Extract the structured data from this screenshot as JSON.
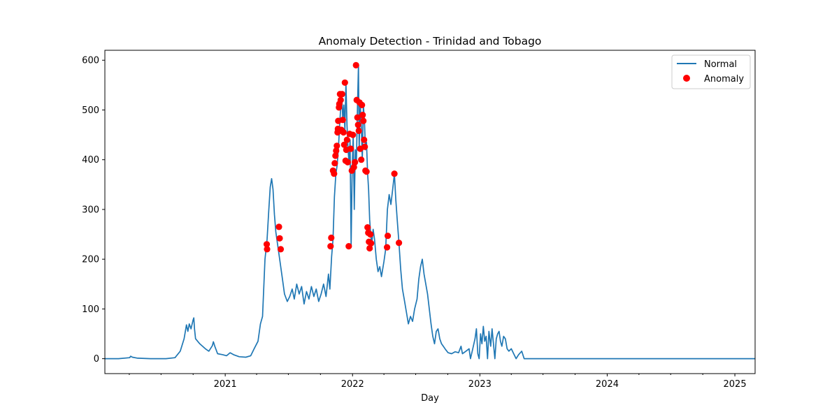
{
  "chart_data": {
    "type": "line",
    "title": "Anomaly Detection - Trinidad and Tobago",
    "xlabel": "Day",
    "ylabel": "",
    "x_axis_type": "date",
    "xlim": [
      "2020-01-22",
      "2025-02-28"
    ],
    "ylim": [
      -30,
      620
    ],
    "xticks": [
      "2021",
      "2022",
      "2023",
      "2024",
      "2025"
    ],
    "yticks": [
      0,
      100,
      200,
      300,
      400,
      500,
      600
    ],
    "legend_position": "top-right",
    "grid": false,
    "colors": {
      "line": "#1f77b4",
      "anomaly": "#ff0000"
    },
    "series": [
      {
        "name": "Normal",
        "kind": "line",
        "points": [
          [
            "2020-01-22",
            0
          ],
          [
            "2020-03-01",
            0
          ],
          [
            "2020-04-02",
            2
          ],
          [
            "2020-04-05",
            5
          ],
          [
            "2020-04-10",
            3
          ],
          [
            "2020-04-25",
            1
          ],
          [
            "2020-06-01",
            0
          ],
          [
            "2020-07-15",
            0
          ],
          [
            "2020-08-10",
            2
          ],
          [
            "2020-08-25",
            15
          ],
          [
            "2020-09-05",
            40
          ],
          [
            "2020-09-12",
            68
          ],
          [
            "2020-09-16",
            55
          ],
          [
            "2020-09-20",
            70
          ],
          [
            "2020-09-25",
            60
          ],
          [
            "2020-10-01",
            78
          ],
          [
            "2020-10-03",
            82
          ],
          [
            "2020-10-05",
            60
          ],
          [
            "2020-10-08",
            40
          ],
          [
            "2020-10-20",
            30
          ],
          [
            "2020-11-05",
            20
          ],
          [
            "2020-11-15",
            15
          ],
          [
            "2020-11-25",
            26
          ],
          [
            "2020-11-28",
            34
          ],
          [
            "2020-12-02",
            25
          ],
          [
            "2020-12-10",
            10
          ],
          [
            "2020-12-25",
            8
          ],
          [
            "2021-01-05",
            6
          ],
          [
            "2021-01-15",
            12
          ],
          [
            "2021-01-25",
            8
          ],
          [
            "2021-02-10",
            4
          ],
          [
            "2021-03-01",
            3
          ],
          [
            "2021-03-15",
            6
          ],
          [
            "2021-03-25",
            20
          ],
          [
            "2021-04-05",
            35
          ],
          [
            "2021-04-12",
            70
          ],
          [
            "2021-04-18",
            85
          ],
          [
            "2021-04-25",
            200
          ],
          [
            "2021-05-01",
            240
          ],
          [
            "2021-05-06",
            300
          ],
          [
            "2021-05-10",
            345
          ],
          [
            "2021-05-14",
            362
          ],
          [
            "2021-05-18",
            340
          ],
          [
            "2021-05-22",
            290
          ],
          [
            "2021-05-26",
            255
          ],
          [
            "2021-06-02",
            220
          ],
          [
            "2021-06-08",
            190
          ],
          [
            "2021-06-14",
            160
          ],
          [
            "2021-06-20",
            130
          ],
          [
            "2021-06-28",
            115
          ],
          [
            "2021-07-05",
            125
          ],
          [
            "2021-07-12",
            140
          ],
          [
            "2021-07-18",
            120
          ],
          [
            "2021-07-25",
            150
          ],
          [
            "2021-08-01",
            130
          ],
          [
            "2021-08-08",
            145
          ],
          [
            "2021-08-15",
            110
          ],
          [
            "2021-08-22",
            135
          ],
          [
            "2021-08-29",
            120
          ],
          [
            "2021-09-05",
            145
          ],
          [
            "2021-09-12",
            125
          ],
          [
            "2021-09-19",
            140
          ],
          [
            "2021-09-26",
            115
          ],
          [
            "2021-10-03",
            130
          ],
          [
            "2021-10-10",
            150
          ],
          [
            "2021-10-17",
            125
          ],
          [
            "2021-10-24",
            170
          ],
          [
            "2021-10-28",
            140
          ],
          [
            "2021-11-02",
            205
          ],
          [
            "2021-11-06",
            240
          ],
          [
            "2021-11-10",
            325
          ],
          [
            "2021-11-14",
            370
          ],
          [
            "2021-11-18",
            390
          ],
          [
            "2021-11-22",
            430
          ],
          [
            "2021-11-25",
            470
          ],
          [
            "2021-11-28",
            505
          ],
          [
            "2021-12-01",
            530
          ],
          [
            "2021-12-04",
            480
          ],
          [
            "2021-12-07",
            510
          ],
          [
            "2021-12-10",
            460
          ],
          [
            "2021-12-13",
            555
          ],
          [
            "2021-12-16",
            470
          ],
          [
            "2021-12-19",
            420
          ],
          [
            "2021-12-22",
            395
          ],
          [
            "2021-12-25",
            440
          ],
          [
            "2021-12-28",
            225
          ],
          [
            "2021-12-31",
            380
          ],
          [
            "2022-01-03",
            450
          ],
          [
            "2022-01-06",
            300
          ],
          [
            "2022-01-09",
            420
          ],
          [
            "2022-01-12",
            390
          ],
          [
            "2022-01-15",
            500
          ],
          [
            "2022-01-18",
            590
          ],
          [
            "2022-01-20",
            420
          ],
          [
            "2022-01-23",
            515
          ],
          [
            "2022-01-26",
            470
          ],
          [
            "2022-01-29",
            400
          ],
          [
            "2022-02-01",
            510
          ],
          [
            "2022-02-04",
            480
          ],
          [
            "2022-02-07",
            420
          ],
          [
            "2022-02-10",
            435
          ],
          [
            "2022-02-13",
            375
          ],
          [
            "2022-02-16",
            340
          ],
          [
            "2022-02-19",
            280
          ],
          [
            "2022-02-22",
            250
          ],
          [
            "2022-02-25",
            230
          ],
          [
            "2022-03-01",
            260
          ],
          [
            "2022-03-05",
            240
          ],
          [
            "2022-03-10",
            200
          ],
          [
            "2022-03-15",
            175
          ],
          [
            "2022-03-20",
            185
          ],
          [
            "2022-03-25",
            165
          ],
          [
            "2022-04-01",
            195
          ],
          [
            "2022-04-06",
            220
          ],
          [
            "2022-04-11",
            300
          ],
          [
            "2022-04-16",
            330
          ],
          [
            "2022-04-21",
            310
          ],
          [
            "2022-04-26",
            340
          ],
          [
            "2022-05-01",
            372
          ],
          [
            "2022-05-05",
            320
          ],
          [
            "2022-05-09",
            280
          ],
          [
            "2022-05-14",
            233
          ],
          [
            "2022-05-19",
            180
          ],
          [
            "2022-05-24",
            140
          ],
          [
            "2022-05-29",
            120
          ],
          [
            "2022-06-04",
            95
          ],
          [
            "2022-06-10",
            70
          ],
          [
            "2022-06-16",
            85
          ],
          [
            "2022-06-22",
            75
          ],
          [
            "2022-06-28",
            100
          ],
          [
            "2022-07-05",
            120
          ],
          [
            "2022-07-10",
            160
          ],
          [
            "2022-07-15",
            185
          ],
          [
            "2022-07-20",
            200
          ],
          [
            "2022-07-25",
            170
          ],
          [
            "2022-07-30",
            150
          ],
          [
            "2022-08-04",
            130
          ],
          [
            "2022-08-09",
            100
          ],
          [
            "2022-08-14",
            70
          ],
          [
            "2022-08-19",
            45
          ],
          [
            "2022-08-24",
            30
          ],
          [
            "2022-08-29",
            55
          ],
          [
            "2022-09-03",
            60
          ],
          [
            "2022-09-08",
            40
          ],
          [
            "2022-09-13",
            30
          ],
          [
            "2022-09-18",
            25
          ],
          [
            "2022-09-25",
            18
          ],
          [
            "2022-10-02",
            12
          ],
          [
            "2022-10-12",
            10
          ],
          [
            "2022-10-22",
            14
          ],
          [
            "2022-11-01",
            12
          ],
          [
            "2022-11-08",
            25
          ],
          [
            "2022-11-12",
            10
          ],
          [
            "2022-11-22",
            15
          ],
          [
            "2022-12-01",
            20
          ],
          [
            "2022-12-05",
            0
          ],
          [
            "2022-12-10",
            15
          ],
          [
            "2022-12-18",
            40
          ],
          [
            "2022-12-22",
            60
          ],
          [
            "2022-12-26",
            10
          ],
          [
            "2022-12-30",
            0
          ],
          [
            "2023-01-03",
            50
          ],
          [
            "2023-01-07",
            30
          ],
          [
            "2023-01-11",
            65
          ],
          [
            "2023-01-15",
            35
          ],
          [
            "2023-01-19",
            45
          ],
          [
            "2023-01-23",
            0
          ],
          [
            "2023-01-27",
            55
          ],
          [
            "2023-02-01",
            25
          ],
          [
            "2023-02-05",
            60
          ],
          [
            "2023-02-09",
            30
          ],
          [
            "2023-02-13",
            0
          ],
          [
            "2023-02-17",
            40
          ],
          [
            "2023-02-21",
            50
          ],
          [
            "2023-02-25",
            55
          ],
          [
            "2023-03-01",
            35
          ],
          [
            "2023-03-05",
            25
          ],
          [
            "2023-03-10",
            45
          ],
          [
            "2023-03-15",
            40
          ],
          [
            "2023-03-20",
            20
          ],
          [
            "2023-03-25",
            15
          ],
          [
            "2023-04-01",
            20
          ],
          [
            "2023-04-08",
            10
          ],
          [
            "2023-04-15",
            0
          ],
          [
            "2023-04-22",
            8
          ],
          [
            "2023-05-01",
            15
          ],
          [
            "2023-05-08",
            0
          ],
          [
            "2023-05-15",
            0
          ],
          [
            "2023-06-01",
            0
          ],
          [
            "2024-01-01",
            0
          ],
          [
            "2025-02-28",
            0
          ]
        ]
      },
      {
        "name": "Anomaly",
        "kind": "scatter",
        "points": [
          [
            "2021-04-30",
            230
          ],
          [
            "2021-05-01",
            220
          ],
          [
            "2021-06-04",
            265
          ],
          [
            "2021-06-06",
            242
          ],
          [
            "2021-06-09",
            220
          ],
          [
            "2021-10-30",
            226
          ],
          [
            "2021-11-01",
            243
          ],
          [
            "2021-11-06",
            378
          ],
          [
            "2021-11-09",
            372
          ],
          [
            "2021-11-11",
            393
          ],
          [
            "2021-11-13",
            408
          ],
          [
            "2021-11-15",
            418
          ],
          [
            "2021-11-17",
            428
          ],
          [
            "2021-11-19",
            455
          ],
          [
            "2021-11-20",
            462
          ],
          [
            "2021-11-21",
            478
          ],
          [
            "2021-11-23",
            505
          ],
          [
            "2021-11-24",
            512
          ],
          [
            "2021-11-26",
            532
          ],
          [
            "2021-11-28",
            520
          ],
          [
            "2021-11-30",
            460
          ],
          [
            "2021-12-02",
            532
          ],
          [
            "2021-12-04",
            480
          ],
          [
            "2021-12-06",
            455
          ],
          [
            "2021-12-08",
            430
          ],
          [
            "2021-12-10",
            555
          ],
          [
            "2021-12-12",
            398
          ],
          [
            "2021-12-14",
            420
          ],
          [
            "2021-12-16",
            440
          ],
          [
            "2021-12-18",
            395
          ],
          [
            "2021-12-21",
            226
          ],
          [
            "2021-12-24",
            452
          ],
          [
            "2021-12-27",
            422
          ],
          [
            "2021-12-30",
            378
          ],
          [
            "2022-01-02",
            450
          ],
          [
            "2022-01-05",
            385
          ],
          [
            "2022-01-08",
            395
          ],
          [
            "2022-01-11",
            590
          ],
          [
            "2022-01-13",
            520
          ],
          [
            "2022-01-15",
            485
          ],
          [
            "2022-01-17",
            470
          ],
          [
            "2022-01-19",
            458
          ],
          [
            "2022-01-21",
            515
          ],
          [
            "2022-01-23",
            422
          ],
          [
            "2022-01-26",
            400
          ],
          [
            "2022-01-28",
            510
          ],
          [
            "2022-01-30",
            490
          ],
          [
            "2022-02-01",
            478
          ],
          [
            "2022-02-03",
            440
          ],
          [
            "2022-02-05",
            426
          ],
          [
            "2022-02-07",
            378
          ],
          [
            "2022-02-10",
            376
          ],
          [
            "2022-02-13",
            264
          ],
          [
            "2022-02-15",
            253
          ],
          [
            "2022-02-17",
            235
          ],
          [
            "2022-02-19",
            222
          ],
          [
            "2022-02-21",
            250
          ],
          [
            "2022-02-23",
            232
          ],
          [
            "2022-04-10",
            224
          ],
          [
            "2022-04-12",
            247
          ],
          [
            "2022-05-01",
            372
          ],
          [
            "2022-05-14",
            233
          ]
        ]
      }
    ]
  }
}
